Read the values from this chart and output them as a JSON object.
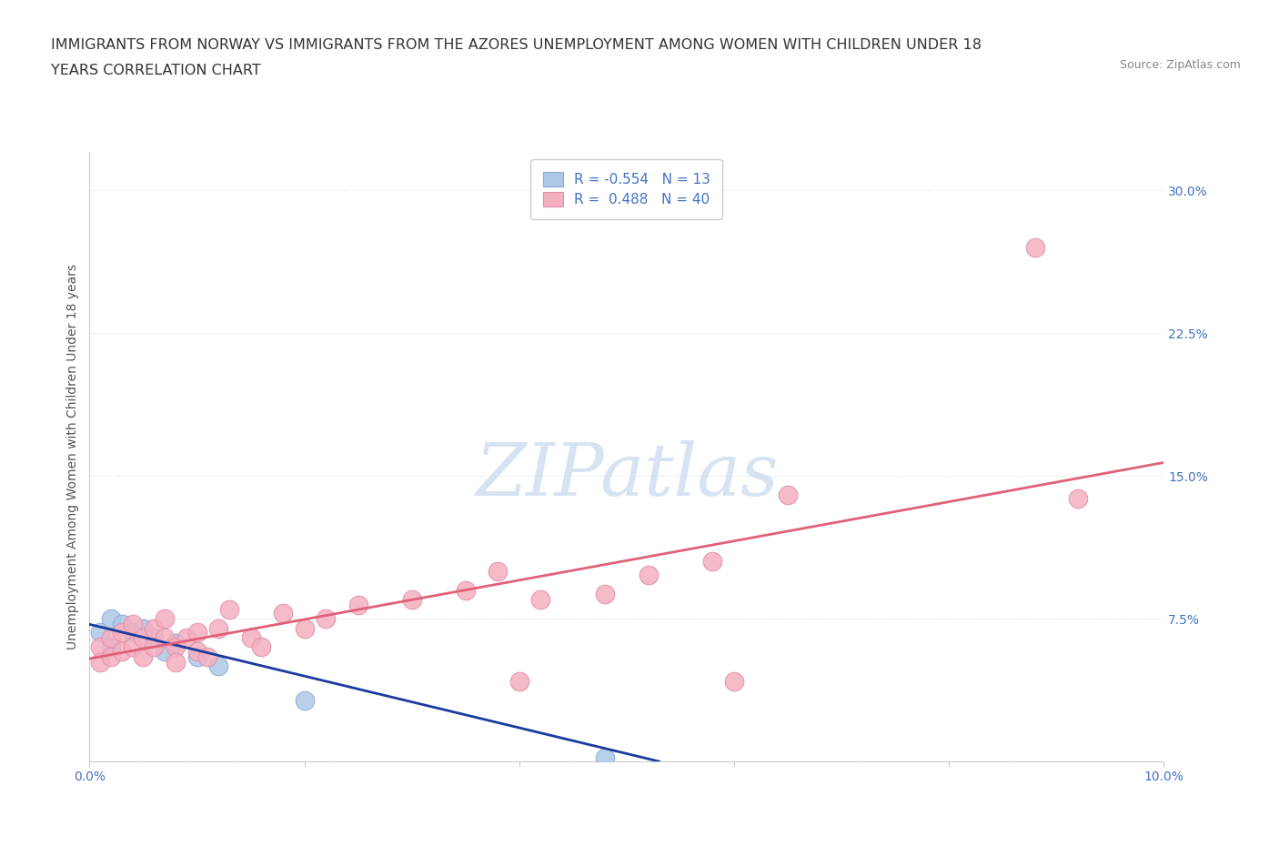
{
  "title_line1": "IMMIGRANTS FROM NORWAY VS IMMIGRANTS FROM THE AZORES UNEMPLOYMENT AMONG WOMEN WITH CHILDREN UNDER 18",
  "title_line2": "YEARS CORRELATION CHART",
  "source": "Source: ZipAtlas.com",
  "ylabel": "Unemployment Among Women with Children Under 18 years",
  "xlim": [
    0.0,
    0.1
  ],
  "ylim": [
    0.0,
    0.32
  ],
  "xtick_positions": [
    0.0,
    0.02,
    0.04,
    0.06,
    0.08,
    0.1
  ],
  "xticklabels": [
    "0.0%",
    "",
    "",
    "",
    "",
    "10.0%"
  ],
  "ytick_positions": [
    0.0,
    0.075,
    0.15,
    0.225,
    0.3
  ],
  "ytick_labels": [
    "",
    "7.5%",
    "15.0%",
    "22.5%",
    "30.0%"
  ],
  "norway_R": -0.554,
  "norway_N": 13,
  "azores_R": 0.488,
  "azores_N": 40,
  "norway_color": "#adc8e8",
  "azores_color": "#f5b0c0",
  "norway_line_color": "#1a3a9e",
  "azores_line_color": "#e0607a",
  "norway_points_x": [
    0.001,
    0.002,
    0.002,
    0.003,
    0.004,
    0.005,
    0.006,
    0.007,
    0.008,
    0.01,
    0.012,
    0.02,
    0.048
  ],
  "norway_points_y": [
    0.068,
    0.075,
    0.06,
    0.072,
    0.068,
    0.07,
    0.065,
    0.058,
    0.062,
    0.055,
    0.05,
    0.032,
    0.002
  ],
  "azores_points_x": [
    0.001,
    0.001,
    0.002,
    0.002,
    0.003,
    0.003,
    0.004,
    0.004,
    0.005,
    0.005,
    0.006,
    0.006,
    0.007,
    0.007,
    0.008,
    0.008,
    0.009,
    0.01,
    0.01,
    0.011,
    0.012,
    0.013,
    0.015,
    0.016,
    0.018,
    0.02,
    0.022,
    0.025,
    0.03,
    0.035,
    0.038,
    0.04,
    0.042,
    0.048,
    0.052,
    0.058,
    0.06,
    0.065,
    0.088,
    0.092
  ],
  "azores_points_y": [
    0.06,
    0.052,
    0.065,
    0.055,
    0.068,
    0.058,
    0.072,
    0.06,
    0.065,
    0.055,
    0.07,
    0.06,
    0.075,
    0.065,
    0.06,
    0.052,
    0.065,
    0.068,
    0.058,
    0.055,
    0.07,
    0.08,
    0.065,
    0.06,
    0.078,
    0.07,
    0.075,
    0.082,
    0.085,
    0.09,
    0.1,
    0.042,
    0.085,
    0.088,
    0.098,
    0.105,
    0.042,
    0.14,
    0.27,
    0.138
  ],
  "norway_line_x0": 0.0,
  "norway_line_y0": 0.072,
  "norway_line_x1": 0.053,
  "norway_line_y1": 0.0,
  "azores_line_x0": 0.0,
  "azores_line_y0": 0.054,
  "azores_line_x1": 0.1,
  "azores_line_y1": 0.157,
  "watermark_text": "ZIPatlas",
  "watermark_color": "#c5d8ed",
  "background_color": "#ffffff",
  "grid_color": "#dddddd",
  "title_color": "#333333",
  "tick_color": "#4472c4",
  "ylabel_color": "#555555",
  "title_fontsize": 11.5,
  "tick_fontsize": 10,
  "legend_fontsize": 11,
  "ylabel_fontsize": 10,
  "source_fontsize": 9
}
